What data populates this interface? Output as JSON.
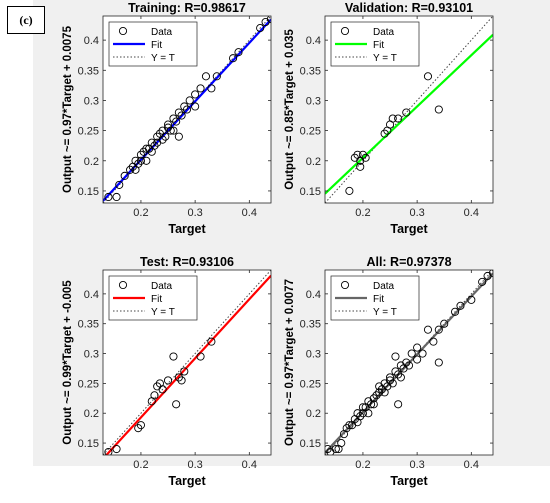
{
  "panel_label": "(c)",
  "colors": {
    "figure_bg": "#f0f0f0",
    "axes_bg": "#ffffff",
    "data_marker": "#000000",
    "identity_line": "#444444"
  },
  "legend": {
    "data": "Data",
    "fit": "Fit",
    "identity": "Y = T"
  },
  "chart_data": [
    {
      "type": "scatter",
      "title": "Training: R=0.98617",
      "xlabel": "Target",
      "ylabel": "Output ~= 0.97*Target + 0.0075",
      "xlim": [
        0.13,
        0.44
      ],
      "ylim": [
        0.13,
        0.44
      ],
      "xticks": [
        "0.2",
        "0.3",
        "0.4"
      ],
      "yticks": [
        "0.15",
        "0.2",
        "0.25",
        "0.3",
        "0.35",
        "0.4"
      ],
      "fit_color": "#0000ff",
      "fit": {
        "slope": 0.97,
        "intercept": 0.0075
      },
      "legend_position": "top-left",
      "points": [
        [
          0.14,
          0.14
        ],
        [
          0.155,
          0.14
        ],
        [
          0.16,
          0.16
        ],
        [
          0.17,
          0.175
        ],
        [
          0.18,
          0.185
        ],
        [
          0.185,
          0.19
        ],
        [
          0.19,
          0.2
        ],
        [
          0.19,
          0.185
        ],
        [
          0.195,
          0.195
        ],
        [
          0.2,
          0.21
        ],
        [
          0.2,
          0.2
        ],
        [
          0.205,
          0.215
        ],
        [
          0.21,
          0.2
        ],
        [
          0.21,
          0.22
        ],
        [
          0.215,
          0.22
        ],
        [
          0.22,
          0.23
        ],
        [
          0.22,
          0.215
        ],
        [
          0.225,
          0.225
        ],
        [
          0.23,
          0.24
        ],
        [
          0.23,
          0.23
        ],
        [
          0.235,
          0.245
        ],
        [
          0.24,
          0.25
        ],
        [
          0.24,
          0.235
        ],
        [
          0.245,
          0.24
        ],
        [
          0.25,
          0.255
        ],
        [
          0.25,
          0.26
        ],
        [
          0.255,
          0.25
        ],
        [
          0.26,
          0.27
        ],
        [
          0.26,
          0.25
        ],
        [
          0.265,
          0.265
        ],
        [
          0.27,
          0.28
        ],
        [
          0.27,
          0.24
        ],
        [
          0.275,
          0.275
        ],
        [
          0.28,
          0.29
        ],
        [
          0.285,
          0.285
        ],
        [
          0.29,
          0.3
        ],
        [
          0.3,
          0.29
        ],
        [
          0.3,
          0.31
        ],
        [
          0.31,
          0.32
        ],
        [
          0.32,
          0.34
        ],
        [
          0.33,
          0.32
        ],
        [
          0.34,
          0.34
        ],
        [
          0.37,
          0.37
        ],
        [
          0.38,
          0.38
        ],
        [
          0.42,
          0.42
        ],
        [
          0.43,
          0.43
        ],
        [
          0.44,
          0.435
        ]
      ]
    },
    {
      "type": "scatter",
      "title": "Validation: R=0.93101",
      "xlabel": "Target",
      "ylabel": "Output ~= 0.85*Target + 0.035",
      "xlim": [
        0.13,
        0.44
      ],
      "ylim": [
        0.13,
        0.44
      ],
      "xticks": [
        "0.2",
        "0.3",
        "0.4"
      ],
      "yticks": [
        "0.15",
        "0.2",
        "0.25",
        "0.3",
        "0.35",
        "0.4"
      ],
      "fit_color": "#00ff00",
      "fit": {
        "slope": 0.85,
        "intercept": 0.035
      },
      "legend_position": "top-left",
      "points": [
        [
          0.175,
          0.15
        ],
        [
          0.185,
          0.205
        ],
        [
          0.19,
          0.21
        ],
        [
          0.195,
          0.19
        ],
        [
          0.195,
          0.2
        ],
        [
          0.2,
          0.21
        ],
        [
          0.205,
          0.205
        ],
        [
          0.24,
          0.245
        ],
        [
          0.245,
          0.25
        ],
        [
          0.25,
          0.26
        ],
        [
          0.255,
          0.27
        ],
        [
          0.265,
          0.27
        ],
        [
          0.28,
          0.28
        ],
        [
          0.32,
          0.34
        ],
        [
          0.34,
          0.285
        ]
      ]
    },
    {
      "type": "scatter",
      "title": "Test: R=0.93106",
      "xlabel": "Target",
      "ylabel": "Output ~= 0.99*Target + -0.005",
      "xlim": [
        0.13,
        0.44
      ],
      "ylim": [
        0.13,
        0.44
      ],
      "xticks": [
        "0.2",
        "0.3",
        "0.4"
      ],
      "yticks": [
        "0.15",
        "0.2",
        "0.25",
        "0.3",
        "0.35",
        "0.4"
      ],
      "fit_color": "#ff0000",
      "fit": {
        "slope": 0.99,
        "intercept": -0.005
      },
      "legend_position": "top-left",
      "points": [
        [
          0.14,
          0.135
        ],
        [
          0.155,
          0.14
        ],
        [
          0.195,
          0.175
        ],
        [
          0.2,
          0.18
        ],
        [
          0.22,
          0.22
        ],
        [
          0.225,
          0.23
        ],
        [
          0.23,
          0.245
        ],
        [
          0.235,
          0.25
        ],
        [
          0.24,
          0.24
        ],
        [
          0.25,
          0.255
        ],
        [
          0.26,
          0.295
        ],
        [
          0.265,
          0.215
        ],
        [
          0.27,
          0.26
        ],
        [
          0.275,
          0.255
        ],
        [
          0.28,
          0.27
        ],
        [
          0.31,
          0.295
        ],
        [
          0.33,
          0.32
        ]
      ]
    },
    {
      "type": "scatter",
      "title": "All: R=0.97378",
      "xlabel": "Target",
      "ylabel": "Output ~= 0.97*Target + 0.0077",
      "xlim": [
        0.13,
        0.44
      ],
      "ylim": [
        0.13,
        0.44
      ],
      "xticks": [
        "0.2",
        "0.3",
        "0.4"
      ],
      "yticks": [
        "0.15",
        "0.2",
        "0.25",
        "0.3",
        "0.35",
        "0.4"
      ],
      "fit_color": "#666666",
      "fit": {
        "slope": 0.97,
        "intercept": 0.0077
      },
      "legend_position": "top-left",
      "points": [
        [
          0.135,
          0.14
        ],
        [
          0.14,
          0.135
        ],
        [
          0.15,
          0.14
        ],
        [
          0.155,
          0.14
        ],
        [
          0.16,
          0.15
        ],
        [
          0.165,
          0.165
        ],
        [
          0.17,
          0.175
        ],
        [
          0.175,
          0.18
        ],
        [
          0.18,
          0.18
        ],
        [
          0.185,
          0.19
        ],
        [
          0.19,
          0.2
        ],
        [
          0.19,
          0.185
        ],
        [
          0.195,
          0.195
        ],
        [
          0.2,
          0.21
        ],
        [
          0.2,
          0.2
        ],
        [
          0.205,
          0.21
        ],
        [
          0.21,
          0.2
        ],
        [
          0.21,
          0.22
        ],
        [
          0.215,
          0.215
        ],
        [
          0.22,
          0.225
        ],
        [
          0.22,
          0.215
        ],
        [
          0.225,
          0.23
        ],
        [
          0.23,
          0.235
        ],
        [
          0.23,
          0.245
        ],
        [
          0.235,
          0.24
        ],
        [
          0.24,
          0.25
        ],
        [
          0.24,
          0.235
        ],
        [
          0.245,
          0.245
        ],
        [
          0.25,
          0.255
        ],
        [
          0.25,
          0.26
        ],
        [
          0.255,
          0.25
        ],
        [
          0.26,
          0.27
        ],
        [
          0.26,
          0.295
        ],
        [
          0.265,
          0.265
        ],
        [
          0.265,
          0.215
        ],
        [
          0.27,
          0.28
        ],
        [
          0.27,
          0.26
        ],
        [
          0.275,
          0.275
        ],
        [
          0.28,
          0.285
        ],
        [
          0.285,
          0.28
        ],
        [
          0.29,
          0.3
        ],
        [
          0.3,
          0.29
        ],
        [
          0.3,
          0.31
        ],
        [
          0.31,
          0.3
        ],
        [
          0.32,
          0.34
        ],
        [
          0.33,
          0.32
        ],
        [
          0.34,
          0.285
        ],
        [
          0.34,
          0.34
        ],
        [
          0.35,
          0.35
        ],
        [
          0.37,
          0.37
        ],
        [
          0.38,
          0.38
        ],
        [
          0.4,
          0.39
        ],
        [
          0.42,
          0.42
        ],
        [
          0.43,
          0.43
        ],
        [
          0.44,
          0.435
        ]
      ]
    }
  ]
}
